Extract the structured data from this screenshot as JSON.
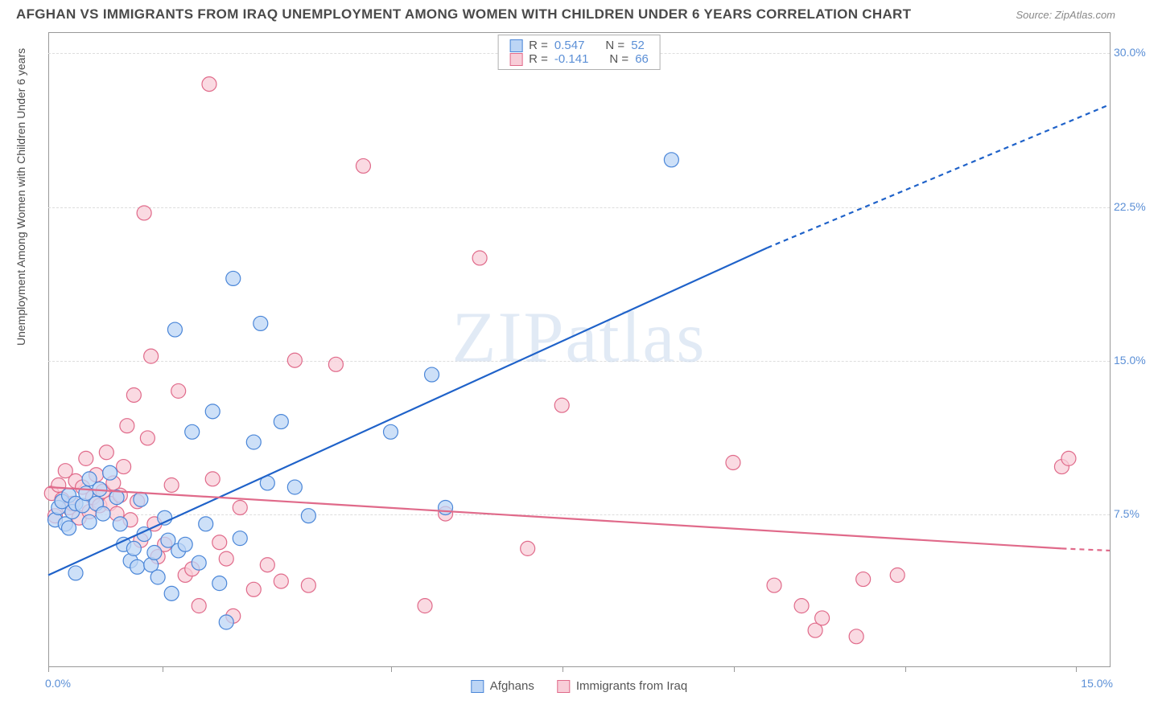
{
  "header": {
    "title": "AFGHAN VS IMMIGRANTS FROM IRAQ UNEMPLOYMENT AMONG WOMEN WITH CHILDREN UNDER 6 YEARS CORRELATION CHART",
    "source": "Source: ZipAtlas.com"
  },
  "chart": {
    "type": "scatter",
    "watermark": "ZIPatlas",
    "y_axis": {
      "label": "Unemployment Among Women with Children Under 6 years",
      "min": 0.0,
      "max": 31.0,
      "ticks": [
        7.5,
        15.0,
        22.5,
        30.0
      ],
      "tick_labels": [
        "7.5%",
        "15.0%",
        "22.5%",
        "30.0%"
      ],
      "tick_color": "#5b8fd6",
      "grid_color": "#dddddd",
      "label_fontsize": 14
    },
    "x_axis": {
      "min": 0.0,
      "max": 15.5,
      "tick_positions": [
        0.0,
        1.67,
        5.0,
        7.5,
        10.0,
        12.5,
        15.0
      ],
      "end_labels": {
        "left": "0.0%",
        "right": "15.0%"
      },
      "tick_color": "#5b8fd6"
    },
    "legend_top": {
      "series1": {
        "swatch": "blue",
        "r_label": "R =",
        "r_value": "0.547",
        "n_label": "N =",
        "n_value": "52"
      },
      "series2": {
        "swatch": "pink",
        "r_label": "R =",
        "r_value": "-0.141",
        "n_label": "N =",
        "n_value": "66"
      }
    },
    "legend_bottom": {
      "series1": {
        "swatch": "blue",
        "label": "Afghans"
      },
      "series2": {
        "swatch": "pink",
        "label": "Immigrants from Iraq"
      }
    },
    "colors": {
      "blue_fill": "#bcd5f5",
      "blue_stroke": "#4a86d8",
      "blue_line": "#1f62c9",
      "pink_fill": "#f8cdd8",
      "pink_stroke": "#e06a8a",
      "pink_line": "#e06a8a",
      "background": "#ffffff",
      "axis": "#999999"
    },
    "marker_radius": 9,
    "trend_lines": {
      "blue": {
        "x1": 0.0,
        "y1": 4.5,
        "x2_solid": 10.5,
        "y2_solid": 20.5,
        "x2_dash": 15.5,
        "y2_dash": 27.5
      },
      "pink": {
        "x1": 0.0,
        "y1": 8.8,
        "x2_solid": 14.8,
        "y2_solid": 5.8,
        "x2_dash": 15.5,
        "y2_dash": 5.7
      }
    },
    "series": {
      "afghans": {
        "color": "blue",
        "points": [
          [
            0.1,
            7.2
          ],
          [
            0.15,
            7.8
          ],
          [
            0.2,
            8.1
          ],
          [
            0.25,
            7.0
          ],
          [
            0.3,
            8.4
          ],
          [
            0.3,
            6.8
          ],
          [
            0.35,
            7.6
          ],
          [
            0.4,
            8.0
          ],
          [
            0.4,
            4.6
          ],
          [
            0.5,
            7.9
          ],
          [
            0.55,
            8.5
          ],
          [
            0.6,
            9.2
          ],
          [
            0.6,
            7.1
          ],
          [
            0.7,
            8.0
          ],
          [
            0.75,
            8.7
          ],
          [
            0.8,
            7.5
          ],
          [
            0.9,
            9.5
          ],
          [
            1.0,
            8.3
          ],
          [
            1.05,
            7.0
          ],
          [
            1.1,
            6.0
          ],
          [
            1.2,
            5.2
          ],
          [
            1.25,
            5.8
          ],
          [
            1.3,
            4.9
          ],
          [
            1.35,
            8.2
          ],
          [
            1.4,
            6.5
          ],
          [
            1.5,
            5.0
          ],
          [
            1.55,
            5.6
          ],
          [
            1.6,
            4.4
          ],
          [
            1.7,
            7.3
          ],
          [
            1.75,
            6.2
          ],
          [
            1.8,
            3.6
          ],
          [
            1.85,
            16.5
          ],
          [
            1.9,
            5.7
          ],
          [
            2.0,
            6.0
          ],
          [
            2.1,
            11.5
          ],
          [
            2.2,
            5.1
          ],
          [
            2.3,
            7.0
          ],
          [
            2.4,
            12.5
          ],
          [
            2.5,
            4.1
          ],
          [
            2.6,
            2.2
          ],
          [
            2.7,
            19.0
          ],
          [
            2.8,
            6.3
          ],
          [
            3.0,
            11.0
          ],
          [
            3.1,
            16.8
          ],
          [
            3.2,
            9.0
          ],
          [
            3.4,
            12.0
          ],
          [
            3.6,
            8.8
          ],
          [
            3.8,
            7.4
          ],
          [
            5.0,
            11.5
          ],
          [
            5.6,
            14.3
          ],
          [
            5.8,
            7.8
          ],
          [
            9.1,
            24.8
          ]
        ]
      },
      "iraq": {
        "color": "pink",
        "points": [
          [
            0.05,
            8.5
          ],
          [
            0.1,
            7.4
          ],
          [
            0.15,
            8.9
          ],
          [
            0.2,
            8.2
          ],
          [
            0.25,
            9.6
          ],
          [
            0.3,
            7.8
          ],
          [
            0.35,
            8.0
          ],
          [
            0.4,
            9.1
          ],
          [
            0.45,
            7.3
          ],
          [
            0.5,
            8.8
          ],
          [
            0.55,
            10.2
          ],
          [
            0.6,
            7.6
          ],
          [
            0.65,
            8.3
          ],
          [
            0.7,
            9.4
          ],
          [
            0.75,
            7.9
          ],
          [
            0.8,
            8.6
          ],
          [
            0.85,
            10.5
          ],
          [
            0.9,
            8.0
          ],
          [
            0.95,
            9.0
          ],
          [
            1.0,
            7.5
          ],
          [
            1.05,
            8.4
          ],
          [
            1.1,
            9.8
          ],
          [
            1.15,
            11.8
          ],
          [
            1.2,
            7.2
          ],
          [
            1.25,
            13.3
          ],
          [
            1.3,
            8.1
          ],
          [
            1.35,
            6.2
          ],
          [
            1.4,
            22.2
          ],
          [
            1.45,
            11.2
          ],
          [
            1.5,
            15.2
          ],
          [
            1.55,
            7.0
          ],
          [
            1.6,
            5.4
          ],
          [
            1.7,
            6.0
          ],
          [
            1.8,
            8.9
          ],
          [
            1.9,
            13.5
          ],
          [
            2.0,
            4.5
          ],
          [
            2.1,
            4.8
          ],
          [
            2.2,
            3.0
          ],
          [
            2.35,
            28.5
          ],
          [
            2.4,
            9.2
          ],
          [
            2.5,
            6.1
          ],
          [
            2.6,
            5.3
          ],
          [
            2.7,
            2.5
          ],
          [
            2.8,
            7.8
          ],
          [
            3.0,
            3.8
          ],
          [
            3.2,
            5.0
          ],
          [
            3.4,
            4.2
          ],
          [
            3.6,
            15.0
          ],
          [
            3.8,
            4.0
          ],
          [
            4.2,
            14.8
          ],
          [
            4.6,
            24.5
          ],
          [
            5.5,
            3.0
          ],
          [
            5.8,
            7.5
          ],
          [
            6.3,
            20.0
          ],
          [
            7.0,
            5.8
          ],
          [
            7.5,
            12.8
          ],
          [
            10.0,
            10.0
          ],
          [
            10.6,
            4.0
          ],
          [
            11.0,
            3.0
          ],
          [
            11.2,
            1.8
          ],
          [
            11.3,
            2.4
          ],
          [
            11.8,
            1.5
          ],
          [
            11.9,
            4.3
          ],
          [
            12.4,
            4.5
          ],
          [
            14.8,
            9.8
          ],
          [
            14.9,
            10.2
          ]
        ]
      }
    }
  }
}
